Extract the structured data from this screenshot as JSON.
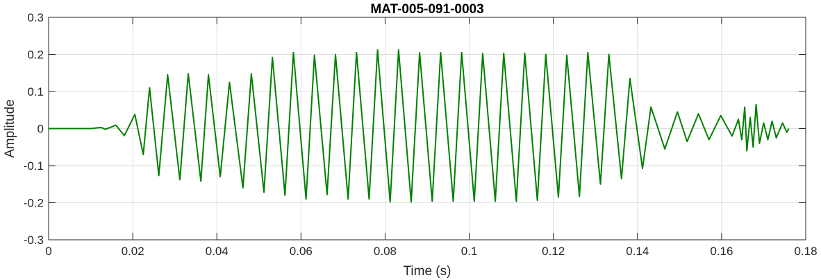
{
  "chart_data": {
    "type": "line",
    "title": "MAT-005-091-0003",
    "xlabel": "Time (s)",
    "ylabel": "Amplitude",
    "xlim": [
      0,
      0.18
    ],
    "ylim": [
      -0.3,
      0.3
    ],
    "grid": true,
    "x_ticks": [
      0,
      0.02,
      0.04,
      0.06,
      0.08,
      0.1,
      0.12,
      0.14,
      0.16,
      0.18
    ],
    "x_tick_labels": [
      "0",
      "0.02",
      "0.04",
      "0.06",
      "0.08",
      "0.1",
      "0.12",
      "0.14",
      "0.16",
      "0.18"
    ],
    "y_ticks": [
      -0.3,
      -0.2,
      -0.1,
      0,
      0.1,
      0.2,
      0.3
    ],
    "y_tick_labels": [
      "-0.3",
      "-0.2",
      "-0.1",
      "0",
      "0.1",
      "0.2",
      "0.3"
    ],
    "colors": {
      "series": "#008000",
      "grid": "#dfdfdf",
      "axes": "#262626"
    },
    "series": [
      {
        "points": [
          [
            0.0,
            0.0
          ],
          [
            0.01,
            0.0
          ],
          [
            0.0125,
            0.003
          ],
          [
            0.0135,
            -0.002
          ],
          [
            0.016,
            0.009
          ],
          [
            0.018,
            -0.019
          ],
          [
            0.0205,
            0.038
          ],
          [
            0.0225,
            -0.07
          ],
          [
            0.024,
            0.11
          ],
          [
            0.0262,
            -0.127
          ],
          [
            0.0283,
            0.145
          ],
          [
            0.0312,
            -0.138
          ],
          [
            0.0332,
            0.148
          ],
          [
            0.0362,
            -0.142
          ],
          [
            0.038,
            0.145
          ],
          [
            0.0408,
            -0.13
          ],
          [
            0.043,
            0.125
          ],
          [
            0.0462,
            -0.16
          ],
          [
            0.0482,
            0.148
          ],
          [
            0.0512,
            -0.172
          ],
          [
            0.0532,
            0.192
          ],
          [
            0.0562,
            -0.18
          ],
          [
            0.0582,
            0.205
          ],
          [
            0.0612,
            -0.19
          ],
          [
            0.0632,
            0.198
          ],
          [
            0.0662,
            -0.178
          ],
          [
            0.0682,
            0.2
          ],
          [
            0.0712,
            -0.19
          ],
          [
            0.0732,
            0.205
          ],
          [
            0.0762,
            -0.19
          ],
          [
            0.0782,
            0.212
          ],
          [
            0.0812,
            -0.198
          ],
          [
            0.0832,
            0.212
          ],
          [
            0.0862,
            -0.198
          ],
          [
            0.0882,
            0.205
          ],
          [
            0.0912,
            -0.196
          ],
          [
            0.0932,
            0.205
          ],
          [
            0.0962,
            -0.196
          ],
          [
            0.0982,
            0.205
          ],
          [
            0.1012,
            -0.196
          ],
          [
            0.1032,
            0.203
          ],
          [
            0.1062,
            -0.196
          ],
          [
            0.1082,
            0.203
          ],
          [
            0.1112,
            -0.196
          ],
          [
            0.1132,
            0.203
          ],
          [
            0.1162,
            -0.194
          ],
          [
            0.1182,
            0.2
          ],
          [
            0.1212,
            -0.185
          ],
          [
            0.1232,
            0.198
          ],
          [
            0.1262,
            -0.183
          ],
          [
            0.1282,
            0.205
          ],
          [
            0.1312,
            -0.15
          ],
          [
            0.1332,
            0.2
          ],
          [
            0.1362,
            -0.135
          ],
          [
            0.1382,
            0.135
          ],
          [
            0.1412,
            -0.108
          ],
          [
            0.1432,
            0.058
          ],
          [
            0.1465,
            -0.055
          ],
          [
            0.1495,
            0.045
          ],
          [
            0.1518,
            -0.035
          ],
          [
            0.1545,
            0.04
          ],
          [
            0.157,
            -0.03
          ],
          [
            0.1598,
            0.035
          ],
          [
            0.1625,
            -0.02
          ],
          [
            0.164,
            0.025
          ],
          [
            0.1648,
            -0.03
          ],
          [
            0.1655,
            0.058
          ],
          [
            0.166,
            -0.06
          ],
          [
            0.1668,
            0.03
          ],
          [
            0.1675,
            -0.05
          ],
          [
            0.1682,
            0.065
          ],
          [
            0.169,
            -0.04
          ],
          [
            0.17,
            0.015
          ],
          [
            0.171,
            -0.03
          ],
          [
            0.172,
            0.02
          ],
          [
            0.173,
            -0.025
          ],
          [
            0.1745,
            0.015
          ],
          [
            0.1755,
            -0.01
          ],
          [
            0.176,
            0.0
          ]
        ]
      }
    ]
  }
}
